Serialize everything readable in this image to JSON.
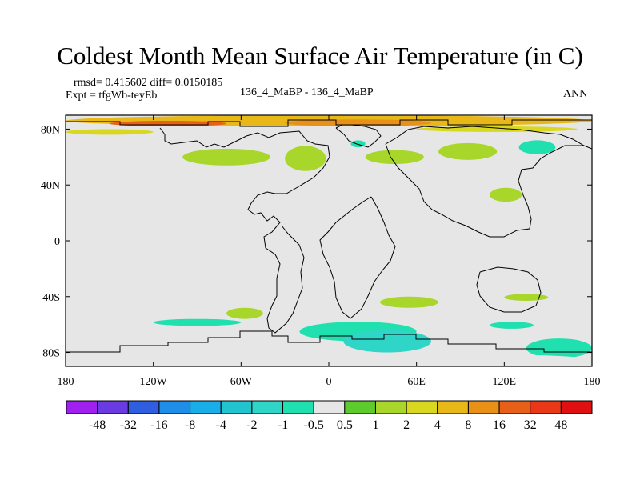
{
  "chart_data": {
    "type": "heatmap",
    "title": "Coldest Month Mean Surface Air Temperature (in C)",
    "stats_line": "rmsd= 0.415602  diff= 0.0150185",
    "experiment_line": "Expt = tfgWb-teyEb",
    "comparison": "136_4_MaBP - 136_4_MaBP",
    "season": "ANN",
    "xlim": [
      -180,
      180
    ],
    "ylim": [
      -90,
      90
    ],
    "x_ticks": [
      {
        "value": -180,
        "label": "180"
      },
      {
        "value": -120,
        "label": "120W"
      },
      {
        "value": -60,
        "label": "60W"
      },
      {
        "value": 0,
        "label": "0"
      },
      {
        "value": 60,
        "label": "60E"
      },
      {
        "value": 120,
        "label": "120E"
      },
      {
        "value": 180,
        "label": "180"
      }
    ],
    "y_ticks": [
      {
        "value": 80,
        "label": "80N"
      },
      {
        "value": 40,
        "label": "40N"
      },
      {
        "value": 0,
        "label": "0"
      },
      {
        "value": -40,
        "label": "40S"
      },
      {
        "value": -80,
        "label": "80S"
      }
    ],
    "colorbar": {
      "levels": [
        "-48",
        "-32",
        "-16",
        "-8",
        "-4",
        "-2",
        "-1",
        "-0.5",
        "0.5",
        "1",
        "2",
        "4",
        "8",
        "16",
        "32",
        "48"
      ],
      "colors": [
        "#a020f0",
        "#6a3be2",
        "#2f5fe0",
        "#1e8ee8",
        "#19aee8",
        "#22c4d0",
        "#2fd6c8",
        "#20e0b0",
        "#e6e6e6",
        "#5ecb2c",
        "#a8d62a",
        "#d8d820",
        "#e8b818",
        "#e89018",
        "#e86018",
        "#e83818",
        "#e01010"
      ]
    },
    "anomaly_regions": [
      {
        "lon": -180,
        "lat": 90,
        "w": 360,
        "h": 8,
        "value": 4
      },
      {
        "lon": -150,
        "lat": 86,
        "w": 80,
        "h": 4,
        "value": 16
      },
      {
        "lon": -30,
        "lat": 87,
        "w": 100,
        "h": 5,
        "value": 8
      },
      {
        "lon": -180,
        "lat": 80,
        "w": 60,
        "h": 4,
        "value": 2
      },
      {
        "lon": 60,
        "lat": 82,
        "w": 110,
        "h": 4,
        "value": 2
      },
      {
        "lon": -100,
        "lat": 66,
        "w": 60,
        "h": 12,
        "value": 1
      },
      {
        "lon": -30,
        "lat": 68,
        "w": 28,
        "h": 18,
        "value": 1
      },
      {
        "lon": 25,
        "lat": 65,
        "w": 40,
        "h": 10,
        "value": 1
      },
      {
        "lon": 75,
        "lat": 70,
        "w": 40,
        "h": 12,
        "value": 1
      },
      {
        "lon": 110,
        "lat": 38,
        "w": 22,
        "h": 10,
        "value": 1
      },
      {
        "lon": -70,
        "lat": -48,
        "w": 25,
        "h": 8,
        "value": 1
      },
      {
        "lon": 35,
        "lat": -40,
        "w": 40,
        "h": 8,
        "value": 1
      },
      {
        "lon": 120,
        "lat": -38,
        "w": 30,
        "h": 5,
        "value": 1
      },
      {
        "lon": -120,
        "lat": -56,
        "w": 60,
        "h": 5,
        "value": -1
      },
      {
        "lon": -20,
        "lat": -58,
        "w": 80,
        "h": 14,
        "value": -1
      },
      {
        "lon": 10,
        "lat": -64,
        "w": 60,
        "h": 16,
        "value": -2
      },
      {
        "lon": 110,
        "lat": -58,
        "w": 30,
        "h": 5,
        "value": -1
      },
      {
        "lon": 135,
        "lat": -70,
        "w": 45,
        "h": 14,
        "value": -1
      },
      {
        "lon": 130,
        "lat": 72,
        "w": 25,
        "h": 10,
        "value": -1
      },
      {
        "lon": 15,
        "lat": 72,
        "w": 10,
        "h": 5,
        "value": -1
      },
      {
        "lon": -180,
        "lat": -80,
        "w": 360,
        "h": 10,
        "value": -0.5
      }
    ]
  }
}
